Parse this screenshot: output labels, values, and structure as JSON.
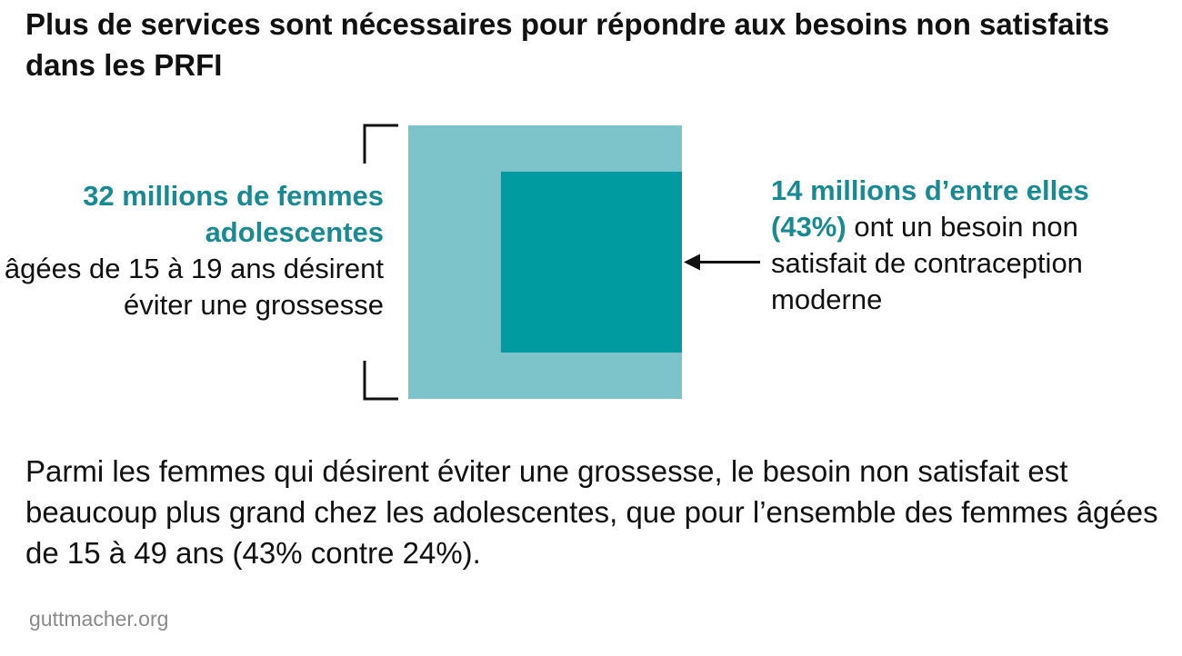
{
  "title": "Plus de services sont nécessaires pour répondre aux besoins non satisfaits dans les PRFI",
  "colors": {
    "outer": "#7cc4c9",
    "inner": "#009ba1",
    "highlight_text": "#1a8a92",
    "text": "#111111",
    "source": "#8a8a8a"
  },
  "chart_data": {
    "type": "proportional-area",
    "outer": {
      "value": 32,
      "unit": "millions",
      "label_bold": "32 millions de femmes adolescentes",
      "label_rest": "âgées de 15 à 19 ans désirent éviter une grossesse"
    },
    "inner": {
      "value": 14,
      "unit": "millions",
      "percent": 43,
      "label_bold": "14 millions d’entre elles (43%)",
      "label_rest": "ont un besoin non satisfait de contraception moderne"
    }
  },
  "body_text": "Parmi les femmes qui désirent éviter une grossesse, le besoin non satisfait est beaucoup plus grand chez les adolescentes, que pour l’ensemble des femmes âgées de 15 à 49 ans (43% contre 24%).",
  "source": "guttmacher.org"
}
